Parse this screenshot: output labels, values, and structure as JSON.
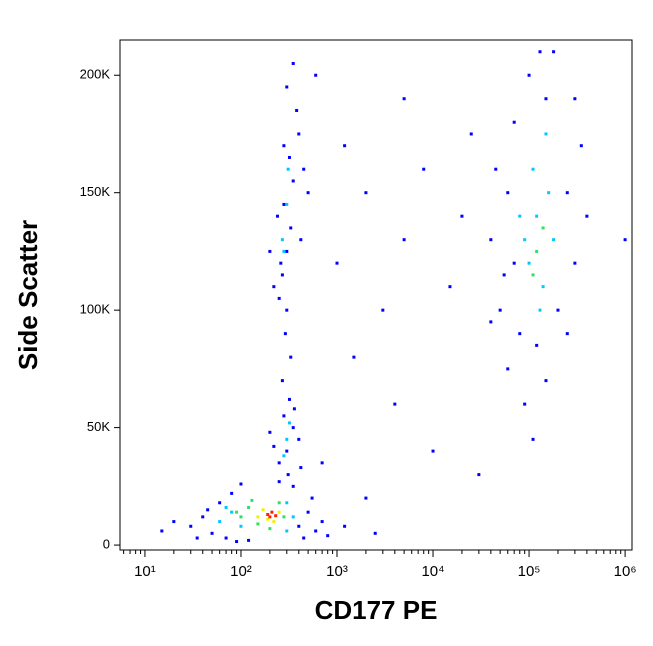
{
  "chart_data": {
    "type": "scatter",
    "x_label": "CD177 PE",
    "y_label": "Side Scatter",
    "xscale": "log",
    "grid": false,
    "xlim": [
      5.5,
      1180000
    ],
    "ylim": [
      -2100,
      215000
    ],
    "xticks": [
      {
        "value": 10,
        "label": "10¹"
      },
      {
        "value": 100,
        "label": "10²"
      },
      {
        "value": 1000,
        "label": "10³"
      },
      {
        "value": 10000,
        "label": "10⁴"
      },
      {
        "value": 100000,
        "label": "10⁵"
      },
      {
        "value": 1000000,
        "label": "10⁶"
      }
    ],
    "yticks": [
      0,
      {
        "value": 50000,
        "label": "50K"
      },
      {
        "value": 100000,
        "label": "100K"
      },
      {
        "value": 150000,
        "label": "150K"
      },
      {
        "value": 200000,
        "label": "200K"
      }
    ],
    "series": [
      {
        "color": "#0000ff",
        "x": [
          30,
          40,
          50,
          60,
          45,
          70,
          80,
          100,
          120,
          400,
          500,
          600,
          700,
          350,
          250,
          20,
          15,
          35,
          800,
          550,
          450,
          90,
          1200,
          2500,
          250,
          300,
          350,
          280,
          320,
          400,
          220,
          270,
          330,
          290,
          310,
          420,
          200,
          360,
          250,
          270,
          300,
          330,
          280,
          350,
          320,
          400,
          380,
          260,
          240,
          300,
          420,
          450,
          220,
          300,
          350,
          280,
          200,
          500,
          40000,
          50000,
          60000,
          70000,
          80000,
          100000,
          120000,
          150000,
          200000,
          250000,
          300000,
          350000,
          45000,
          55000,
          90000,
          110000,
          150000,
          400000,
          180000,
          130000,
          70000,
          250000,
          300000,
          60000,
          40000,
          1000,
          2000,
          3000,
          5000,
          8000,
          15000,
          20000,
          600,
          1500,
          4000,
          10000,
          30000,
          2000,
          700,
          5000,
          1200,
          25000,
          1000000
        ],
        "values": [
          8000,
          12000,
          5000,
          18000,
          15000,
          3000,
          22000,
          26000,
          2000,
          8000,
          14000,
          6000,
          10000,
          25000,
          27000,
          10000,
          6000,
          3000,
          4000,
          20000,
          3000,
          1500,
          8000,
          5000,
          35000,
          40000,
          50000,
          55000,
          62000,
          45000,
          42000,
          70000,
          80000,
          90000,
          30000,
          33000,
          48000,
          58000,
          105000,
          115000,
          125000,
          135000,
          145000,
          155000,
          165000,
          175000,
          185000,
          120000,
          140000,
          100000,
          130000,
          160000,
          110000,
          195000,
          205000,
          170000,
          125000,
          150000,
          130000,
          100000,
          150000,
          180000,
          90000,
          200000,
          85000,
          190000,
          100000,
          150000,
          120000,
          170000,
          160000,
          115000,
          60000,
          45000,
          70000,
          140000,
          210000,
          210000,
          120000,
          90000,
          190000,
          75000,
          95000,
          120000,
          150000,
          100000,
          130000,
          160000,
          110000,
          140000,
          200000,
          80000,
          60000,
          40000,
          30000,
          20000,
          35000,
          190000,
          170000,
          175000,
          130000
        ]
      },
      {
        "color": "#00c8ff",
        "x": [
          60,
          80,
          100,
          300,
          350,
          70,
          300,
          300,
          320,
          280,
          280,
          300,
          310,
          270,
          100000,
          120000,
          140000,
          90000,
          160000,
          110000,
          130000,
          180000,
          80000,
          150000
        ],
        "values": [
          10000,
          14000,
          8000,
          18000,
          12000,
          16000,
          6000,
          45000,
          52000,
          38000,
          125000,
          145000,
          160000,
          130000,
          120000,
          140000,
          110000,
          130000,
          150000,
          160000,
          100000,
          130000,
          140000,
          175000
        ]
      },
      {
        "color": "#30e060",
        "x": [
          100,
          120,
          150,
          90,
          250,
          200,
          280,
          130,
          120000,
          140000,
          110000
        ],
        "values": [
          12000,
          16000,
          9000,
          14000,
          18000,
          7000,
          12000,
          19000,
          125000,
          135000,
          115000
        ]
      },
      {
        "color": "#f0f000",
        "x": [
          150,
          170,
          220,
          250,
          190
        ],
        "values": [
          12000,
          15000,
          10000,
          14000,
          11000
        ]
      },
      {
        "color": "#ff2000",
        "x": [
          190,
          210,
          230,
          200
        ],
        "values": [
          13000,
          14000,
          12500,
          12000
        ]
      }
    ]
  }
}
